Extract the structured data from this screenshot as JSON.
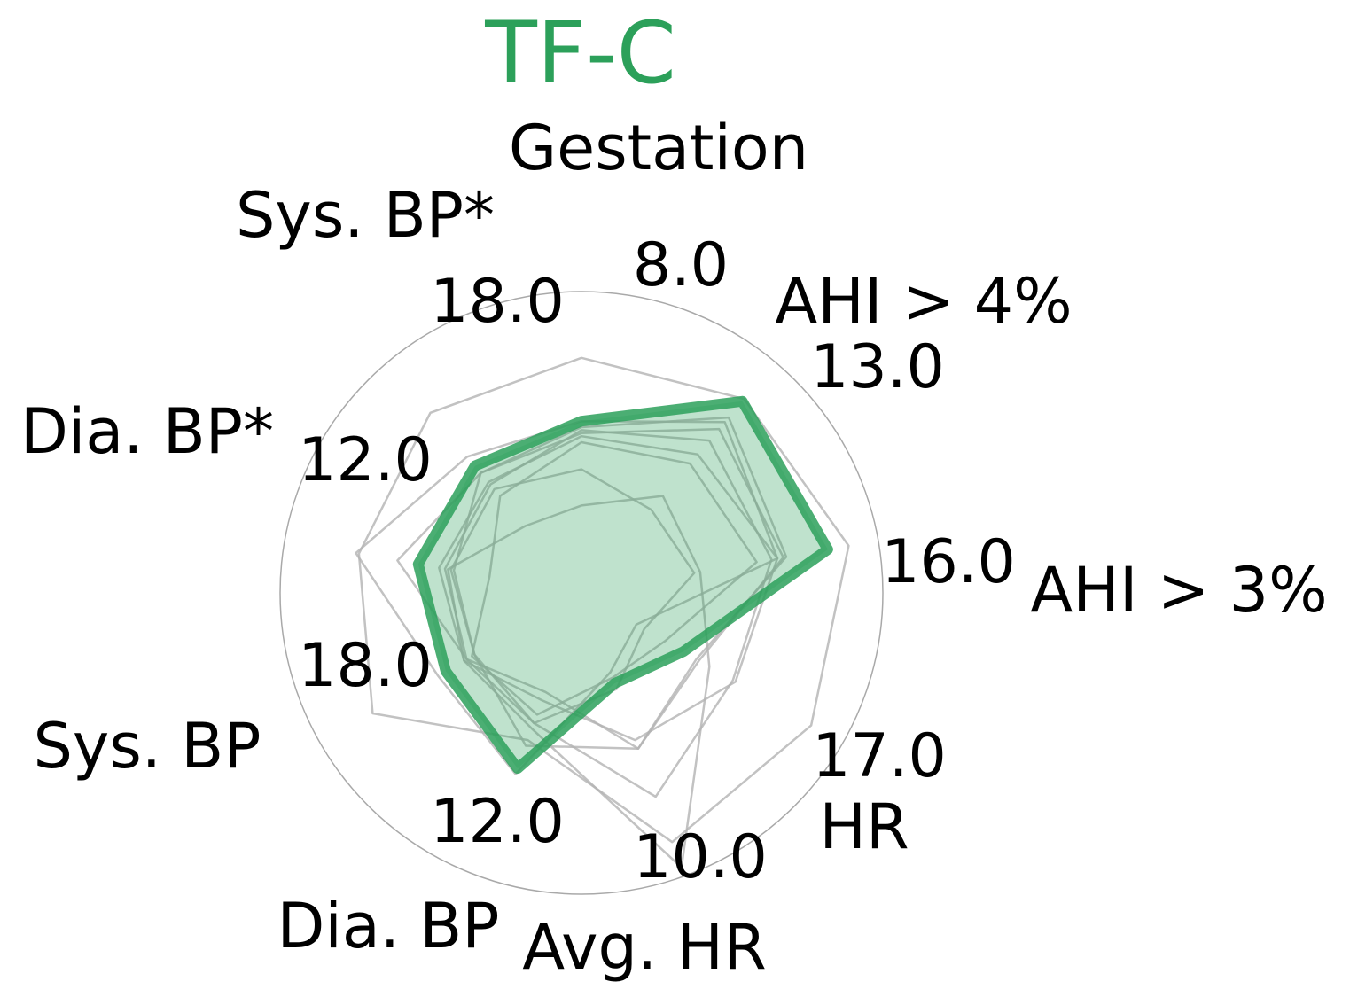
{
  "chart_data": {
    "type": "radar",
    "title": "TF-C",
    "title_color": "#2ca05a",
    "highlight_color": "#2ca05a",
    "other_color": "#b3b3b3",
    "axes": [
      {
        "label": "Gestation",
        "max_label": "8.0"
      },
      {
        "label": "AHI > 4%",
        "max_label": "13.0"
      },
      {
        "label": "AHI > 3%",
        "max_label": "16.0"
      },
      {
        "label": "HR",
        "max_label": "17.0"
      },
      {
        "label": "Avg. HR",
        "max_label": "10.0"
      },
      {
        "label": "Dia. BP",
        "max_label": "12.0"
      },
      {
        "label": "Sys. BP",
        "max_label": "18.0"
      },
      {
        "label": "Dia. BP*",
        "max_label": "12.0"
      },
      {
        "label": "Sys. BP*",
        "max_label": "18.0"
      }
    ],
    "range": [
      0,
      1
    ],
    "highlight_series": {
      "values": [
        0.57,
        0.83,
        0.83,
        0.39,
        0.32,
        0.62,
        0.52,
        0.55,
        0.55
      ]
    },
    "other_series": [
      {
        "values": [
          0.78,
          0.84,
          0.9,
          0.88,
          0.88,
          0.52,
          0.8,
          0.75,
          0.78
        ]
      },
      {
        "values": [
          0.54,
          0.66,
          0.64,
          0.58,
          0.72,
          0.46,
          0.44,
          0.46,
          0.47
        ]
      },
      {
        "values": [
          0.52,
          0.6,
          0.66,
          0.59,
          0.52,
          0.38,
          0.45,
          0.48,
          0.48
        ]
      },
      {
        "values": [
          0.57,
          0.74,
          0.66,
          0.21,
          0.28,
          0.64,
          0.55,
          0.76,
          0.59
        ]
      },
      {
        "values": [
          0.55,
          0.76,
          0.69,
          0.44,
          0.55,
          0.54,
          0.41,
          0.43,
          0.52
        ]
      },
      {
        "values": [
          0.53,
          0.71,
          0.68,
          0.45,
          0.55,
          0.35,
          0.44,
          0.62,
          0.52
        ]
      },
      {
        "values": [
          0.5,
          0.56,
          0.59,
          0.32,
          0.3,
          0.43,
          0.42,
          0.31,
          0.42
        ]
      },
      {
        "values": [
          0.41,
          0.36,
          0.38,
          0.24,
          0.34,
          0.46,
          0.41,
          0.44,
          0.45
        ]
      },
      {
        "values": [
          0.29,
          0.42,
          0.4,
          0.49,
          0.97,
          0.48,
          0.45,
          0.45,
          0.29
        ]
      }
    ]
  }
}
